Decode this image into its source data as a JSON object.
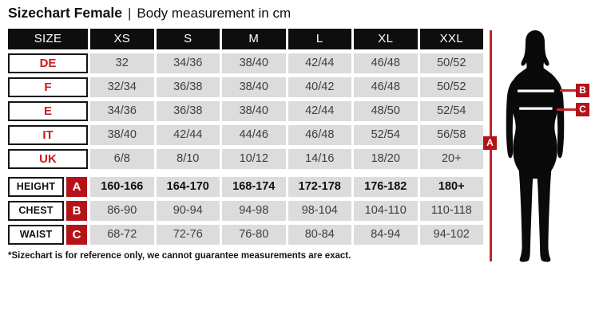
{
  "title": {
    "main": "Sizechart Female",
    "separator": "|",
    "sub": "Body measurement in cm"
  },
  "table": {
    "header": [
      "SIZE",
      "XS",
      "S",
      "M",
      "L",
      "XL",
      "XXL"
    ],
    "size_rows": [
      {
        "label": "DE",
        "values": [
          "32",
          "34/36",
          "38/40",
          "42/44",
          "46/48",
          "50/52"
        ]
      },
      {
        "label": "F",
        "values": [
          "32/34",
          "36/38",
          "38/40",
          "40/42",
          "46/48",
          "50/52"
        ]
      },
      {
        "label": "E",
        "values": [
          "34/36",
          "36/38",
          "38/40",
          "42/44",
          "48/50",
          "52/54"
        ]
      },
      {
        "label": "IT",
        "values": [
          "38/40",
          "42/44",
          "44/46",
          "46/48",
          "52/54",
          "56/58"
        ]
      },
      {
        "label": "UK",
        "values": [
          "6/8",
          "8/10",
          "10/12",
          "14/16",
          "18/20",
          "20+"
        ]
      }
    ],
    "measure_rows": [
      {
        "label": "HEIGHT",
        "marker": "A",
        "bold": true,
        "values": [
          "160-166",
          "164-170",
          "168-174",
          "172-178",
          "176-182",
          "180+"
        ]
      },
      {
        "label": "CHEST",
        "marker": "B",
        "bold": false,
        "values": [
          "86-90",
          "90-94",
          "94-98",
          "98-104",
          "104-110",
          "110-118"
        ]
      },
      {
        "label": "WAIST",
        "marker": "C",
        "bold": false,
        "values": [
          "68-72",
          "72-76",
          "76-80",
          "80-84",
          "84-94",
          "94-102"
        ]
      }
    ]
  },
  "figure": {
    "markers": {
      "a": "A",
      "b": "B",
      "c": "C"
    }
  },
  "footnote": "*Sizechart is for reference only, we cannot guarantee measurements are exact.",
  "colors": {
    "red_box": "#b5131a",
    "red_line": "#c2272d",
    "label_red": "#cf1920",
    "cell_bg": "#dcdcdc",
    "cell_text": "#3e3e3e",
    "ink": "#0e0e0e"
  },
  "chart_data": {
    "type": "table",
    "title": "Sizechart Female - Body measurement in cm",
    "columns": [
      "SIZE",
      "XS",
      "S",
      "M",
      "L",
      "XL",
      "XXL"
    ],
    "rows": [
      [
        "DE",
        "32",
        "34/36",
        "38/40",
        "42/44",
        "46/48",
        "50/52"
      ],
      [
        "F",
        "32/34",
        "36/38",
        "38/40",
        "40/42",
        "46/48",
        "50/52"
      ],
      [
        "E",
        "34/36",
        "36/38",
        "38/40",
        "42/44",
        "48/50",
        "52/54"
      ],
      [
        "IT",
        "38/40",
        "42/44",
        "44/46",
        "46/48",
        "52/54",
        "56/58"
      ],
      [
        "UK",
        "6/8",
        "8/10",
        "10/12",
        "14/16",
        "18/20",
        "20+"
      ],
      [
        "HEIGHT (A)",
        "160-166",
        "164-170",
        "168-174",
        "172-178",
        "176-182",
        "180+"
      ],
      [
        "CHEST (B)",
        "86-90",
        "90-94",
        "94-98",
        "98-104",
        "104-110",
        "110-118"
      ],
      [
        "WAIST (C)",
        "68-72",
        "72-76",
        "76-80",
        "80-84",
        "84-94",
        "94-102"
      ]
    ]
  }
}
